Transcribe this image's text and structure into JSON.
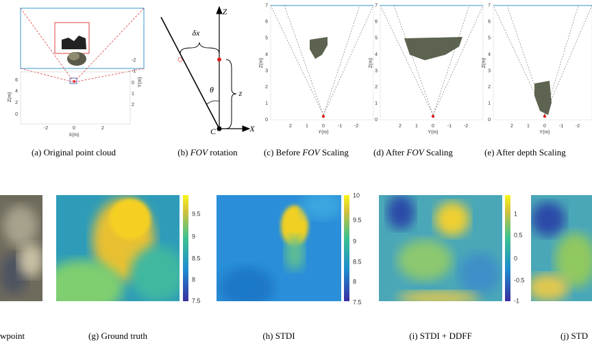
{
  "top_panels": [
    {
      "caption": "(a) Original point cloud",
      "z_label": "Z(m)",
      "z_ticks": [
        "6",
        "4",
        "2",
        "0"
      ],
      "x_label": "X(m)",
      "x_ticks": [
        "-2",
        "0",
        "2"
      ],
      "y_label": "Y(m)",
      "y_ticks": [
        "-2",
        "-1",
        "0",
        "1",
        "2"
      ]
    },
    {
      "caption": "(b) FOV rotation",
      "z_axis": "Z",
      "x_axis": "X",
      "origin": "C",
      "angle": "θ",
      "shift": "δx",
      "depth": "z"
    },
    {
      "caption": "(c) Before FOV Scaling",
      "y_label": "Z(m)",
      "y_ticks": [
        "0",
        "1",
        "2",
        "3",
        "4",
        "5",
        "6",
        "7"
      ],
      "x_label": "Y(m)",
      "x_ticks": [
        "2",
        "1",
        "0",
        "-1",
        "-2"
      ]
    },
    {
      "caption": "(d) After FOV Scaling",
      "y_label": "Z(m)",
      "y_ticks": [
        "0",
        "1",
        "2",
        "3",
        "4",
        "5",
        "6",
        "7"
      ],
      "x_label": "Y(m)",
      "x_ticks": [
        "2",
        "1",
        "0",
        "-1",
        "-2"
      ]
    },
    {
      "caption": "(e) After depth Scaling",
      "y_label": "Z(m)",
      "y_ticks": [
        "0",
        "1",
        "2",
        "3",
        "4",
        "5",
        "6",
        "7"
      ],
      "x_label": "Y(m)",
      "x_ticks": [
        "2",
        "1",
        "0",
        "-1",
        "-2"
      ]
    }
  ],
  "bottom_panels": [
    {
      "caption": "wpoint"
    },
    {
      "caption": "(g) Ground truth",
      "colorbar_ticks": [
        "9.5",
        "9",
        "8.5",
        "8",
        "7.5"
      ]
    },
    {
      "caption": "(h) STDI",
      "colorbar_ticks": [
        "10",
        "9.5",
        "9",
        "8.5",
        "8",
        "7.5"
      ]
    },
    {
      "caption": "(i) STDI + DDFF",
      "colorbar_ticks": [
        "1",
        "0.5",
        "0",
        "-0.5",
        "-1"
      ]
    },
    {
      "caption": "(j) STD"
    }
  ]
}
